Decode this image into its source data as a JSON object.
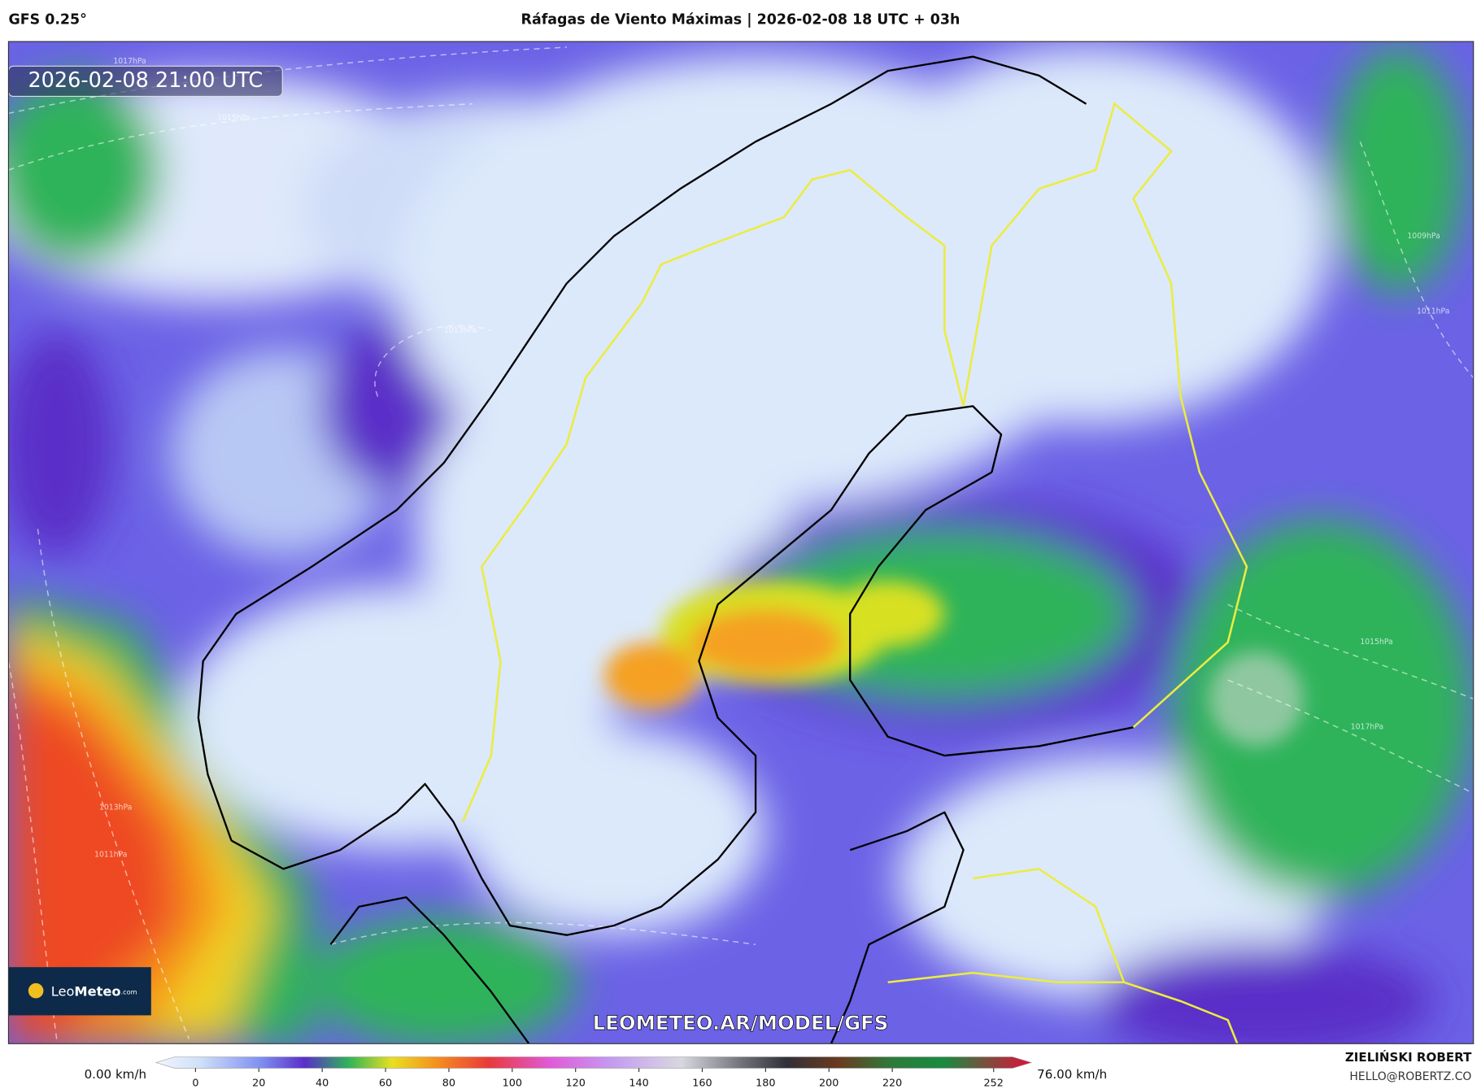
{
  "header": {
    "model": "GFS 0.25°",
    "title": "Ráfagas de Viento Máximas | 2026-02-08 18 UTC + 03h"
  },
  "map": {
    "timestamp": "2026-02-08 21:00 UTC",
    "isobar_labels": [
      "1017hPa",
      "1015hPa",
      "1013hPa",
      "1013hPa",
      "1011hPa",
      "1009hPa",
      "1011hPa",
      "1015hPa",
      "1017hPa"
    ],
    "watermark": "LEOMETEO.AR/MODEL/GFS",
    "logo": {
      "brand": "Leo",
      "brand_bold": "Meteo",
      "suffix": ".com"
    }
  },
  "colorbar": {
    "min_label": "0.00 km/h",
    "max_label": "76.00 km/h",
    "ticks": [
      0,
      20,
      40,
      60,
      80,
      100,
      120,
      140,
      160,
      180,
      200,
      220,
      252
    ]
  },
  "credit": {
    "author": "ZIELIŃSKI ROBERT",
    "email": "HELLO@ROBERTZ.CO"
  }
}
